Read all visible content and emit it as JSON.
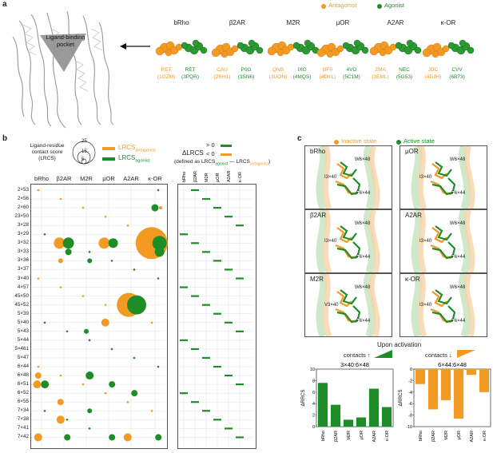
{
  "panel_a": {
    "letter": "a",
    "legend": {
      "antagonist": "Antagonist",
      "agonist": "Agonist"
    },
    "pocket_label": "Ligand-binding pocket",
    "receptors": [
      {
        "name": "bRho",
        "ant": "RET",
        "ant_pdb": "(1GZM)",
        "ag": "RET",
        "ag_pdb": "(3PQR)"
      },
      {
        "name": "β2AR",
        "ant": "CAU",
        "ant_pdb": "(2RH1)",
        "ag": "P0G",
        "ag_pdb": "(3SN6)"
      },
      {
        "name": "M2R",
        "ant": "QNB",
        "ant_pdb": "(3UON)",
        "ag": "IXO",
        "ag_pdb": "(4MQS)"
      },
      {
        "name": "μOR",
        "ant": "BF0",
        "ant_pdb": "(4DKL)",
        "ag": "4VO",
        "ag_pdb": "(5C1M)"
      },
      {
        "name": "A2AR",
        "ant": "ZMA",
        "ant_pdb": "(3EML)",
        "ag": "NEC",
        "ag_pdb": "(5G53)"
      },
      {
        "name": "κ-OR",
        "ant": "JDC",
        "ant_pdb": "(4DJH)",
        "ag": "CVV",
        "ag_pdb": "(6B73)"
      }
    ]
  },
  "panel_b": {
    "letter": "b",
    "lrcs_title": "Ligand-residue contact score (LRCS)",
    "scale_ticks": [
      "25",
      "15",
      "5"
    ],
    "lrcs_antagonist": "LRCS",
    "lrcs_antagonist_sub": "antagonist",
    "lrcs_agonist": "LRCS",
    "lrcs_agonist_sub": "agonist",
    "delta_label": "ΔLRCS",
    "gt0": "> 0",
    "lt0": "< 0",
    "defined_as": "(defined as LRCS",
    "defined_ag": "agonist",
    "defined_minus": " — LRCS",
    "defined_ant": "antagonist",
    "defined_close": ")",
    "columns": [
      "bRho",
      "β2AR",
      "M2R",
      "μOR",
      "A2AR",
      "κ-OR"
    ],
    "residues": [
      "2×53",
      "2×56",
      "2×60",
      "23×50",
      "3×28",
      "3×29",
      "3×32",
      "3×33",
      "3×36",
      "3×37",
      "3×40",
      "4×57",
      "45×50",
      "45×52",
      "5×39",
      "5×40",
      "5×43",
      "5×44",
      "5×461",
      "5×47",
      "6×44",
      "6×48",
      "6×51",
      "6×52",
      "6×55",
      "7×34",
      "7×38",
      "7×41",
      "7×42"
    ]
  },
  "panel_c": {
    "letter": "c",
    "legend": {
      "inactive": "Inactive state",
      "active": "Active state"
    },
    "boxes": [
      {
        "name": "bRho",
        "labels": [
          "W6×48",
          "I3×40",
          "F6×44"
        ]
      },
      {
        "name": "μOR",
        "labels": [
          "W6×48",
          "I3×40",
          "F6×44"
        ]
      },
      {
        "name": "β2AR",
        "labels": [
          "W6×48",
          "I3×40",
          "F6×44"
        ]
      },
      {
        "name": "A2AR",
        "labels": [
          "W6×48",
          "I3×40",
          "F6×44"
        ]
      },
      {
        "name": "M2R",
        "labels": [
          "W6×48",
          "V3×40",
          "F6×44"
        ]
      },
      {
        "name": "κ-OR",
        "labels": [
          "W6×48",
          "I3×40",
          "F6×44"
        ]
      }
    ],
    "upon_activation": "Upon activation",
    "contacts_up": "contacts ↑",
    "contacts_down": "contacts ↓"
  },
  "chart_data": [
    {
      "type": "bar",
      "title": "3×40:6×48",
      "ylabel": "ΔRRCS",
      "categories": [
        "bRho",
        "β2AR",
        "M2R",
        "μOR",
        "A2AR",
        "κ-OR"
      ],
      "values": [
        7.6,
        3.8,
        1.2,
        1.6,
        6.6,
        3.4
      ],
      "ylim": [
        0,
        10
      ],
      "yticks": [
        0,
        2,
        4,
        6,
        8,
        10
      ],
      "color": "#1e8c27"
    },
    {
      "type": "bar",
      "title": "6×44:6×48",
      "ylabel": "ΔRRCS",
      "categories": [
        "bRho",
        "β2AR",
        "M2R",
        "μOR",
        "A2AR",
        "κ-OR"
      ],
      "values": [
        -2.6,
        -7.0,
        -5.4,
        -8.6,
        -1.0,
        -4.0
      ],
      "ylim": [
        -10,
        0
      ],
      "yticks": [
        0,
        -2,
        -4,
        -6,
        -8,
        -10
      ],
      "color": "#f39a23"
    }
  ]
}
